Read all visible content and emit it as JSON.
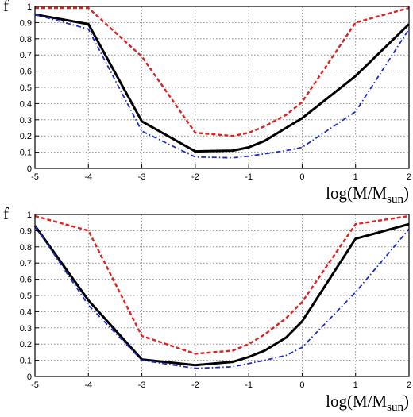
{
  "chart_data": [
    {
      "type": "line",
      "ylabel": "f",
      "xlabel_main": "log(M/M",
      "xlabel_sub": "sun",
      "xlabel_close": ")",
      "xlim": [
        -5,
        2
      ],
      "ylim": [
        0,
        1
      ],
      "grid": true,
      "xticks": [
        "-5",
        "-4",
        "-3",
        "-2",
        "-1",
        "0",
        "1",
        "2"
      ],
      "yticks": [
        "0",
        "0.1",
        "0.2",
        "0.3",
        "0.4",
        "0.5",
        "0.6",
        "0.7",
        "0.8",
        "0.9",
        "1"
      ],
      "series": [
        {
          "color": "#000000",
          "style": "solid",
          "x": [
            -5,
            -4,
            -3,
            -2,
            -1.3,
            -1,
            -0.7,
            -0.3,
            0,
            1,
            2
          ],
          "y": [
            0.95,
            0.89,
            0.29,
            0.105,
            0.11,
            0.13,
            0.17,
            0.25,
            0.31,
            0.57,
            0.89
          ]
        },
        {
          "color": "#dd2222",
          "style": "dashed",
          "x": [
            -5,
            -4,
            -3,
            -2,
            -1.3,
            -1,
            -0.7,
            -0.3,
            0,
            1,
            2
          ],
          "y": [
            0.99,
            0.99,
            0.69,
            0.22,
            0.2,
            0.22,
            0.26,
            0.33,
            0.41,
            0.9,
            0.99
          ]
        },
        {
          "color": "#1a2acc",
          "style": "dashdot",
          "x": [
            -5,
            -4,
            -3,
            -2,
            -1.3,
            -1,
            -0.7,
            -0.3,
            0,
            1,
            2
          ],
          "y": [
            0.95,
            0.86,
            0.23,
            0.07,
            0.065,
            0.075,
            0.09,
            0.11,
            0.13,
            0.35,
            0.86
          ]
        }
      ]
    },
    {
      "type": "line",
      "ylabel": "f",
      "xlabel_main": "log(M/M",
      "xlabel_sub": "sun",
      "xlabel_close": ")",
      "xlim": [
        -5,
        2
      ],
      "ylim": [
        0,
        1
      ],
      "grid": true,
      "xticks": [
        "-5",
        "-4",
        "-3",
        "-2",
        "-1",
        "0",
        "1",
        "2"
      ],
      "yticks": [
        "0",
        "0.1",
        "0.2",
        "0.3",
        "0.4",
        "0.5",
        "0.6",
        "0.7",
        "0.8",
        "0.9",
        "1"
      ],
      "series": [
        {
          "color": "#000000",
          "style": "solid",
          "x": [
            -5,
            -4,
            -3,
            -2,
            -1.3,
            -1,
            -0.7,
            -0.3,
            0,
            1,
            2
          ],
          "y": [
            0.93,
            0.47,
            0.105,
            0.07,
            0.09,
            0.12,
            0.16,
            0.24,
            0.34,
            0.85,
            0.94
          ]
        },
        {
          "color": "#dd2222",
          "style": "dashed",
          "x": [
            -5,
            -4,
            -3,
            -2,
            -1.3,
            -1,
            -0.7,
            -0.3,
            0,
            1,
            2
          ],
          "y": [
            0.99,
            0.9,
            0.25,
            0.14,
            0.16,
            0.2,
            0.26,
            0.36,
            0.46,
            0.94,
            0.99
          ]
        },
        {
          "color": "#1a2acc",
          "style": "dashdot",
          "x": [
            -5,
            -4,
            -3,
            -2,
            -1.3,
            -1,
            -0.7,
            -0.3,
            0,
            1,
            2
          ],
          "y": [
            0.93,
            0.44,
            0.1,
            0.05,
            0.06,
            0.08,
            0.1,
            0.13,
            0.18,
            0.52,
            0.91
          ]
        }
      ]
    }
  ]
}
